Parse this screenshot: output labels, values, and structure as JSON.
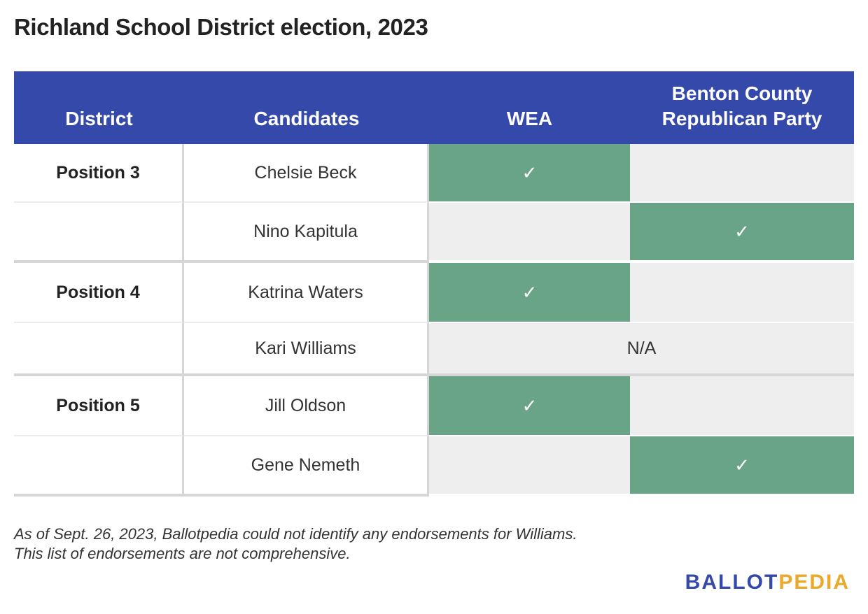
{
  "title": "Richland School District election, 2023",
  "headers": [
    "District",
    "Candidates",
    "WEA",
    "Benton County Republican Party"
  ],
  "header_wea": "WEA",
  "header_bcrp_line1": "Benton County",
  "header_bcrp_line2": "Republican Party",
  "check": "✓",
  "rows": [
    {
      "district": "Position 3",
      "candidate": "Chelsie Beck",
      "wea": "✓",
      "bcrp": ""
    },
    {
      "district": "",
      "candidate": "Nino Kapitula",
      "wea": "",
      "bcrp": "✓"
    },
    {
      "district": "Position 4",
      "candidate": "Katrina Waters",
      "wea": "✓",
      "bcrp": ""
    },
    {
      "district": "",
      "candidate": "Kari Williams",
      "na": "N/A"
    },
    {
      "district": "Position 5",
      "candidate": "Jill Oldson",
      "wea": "✓",
      "bcrp": ""
    },
    {
      "district": "",
      "candidate": "Gene Nemeth",
      "wea": "",
      "bcrp": "✓"
    }
  ],
  "notes": [
    "As of Sept. 26, 2023, Ballotpedia could not identify any endorsements for Williams.",
    "This list of endorsements are not comprehensive."
  ],
  "logo": {
    "part1": "BALLOT",
    "part2": "PEDIA"
  },
  "colors": {
    "header": "#3549aa",
    "endorsed": "#6aa487",
    "empty": "#eeeeee",
    "logo_blue": "#3549aa",
    "logo_gold": "#eba92c"
  }
}
